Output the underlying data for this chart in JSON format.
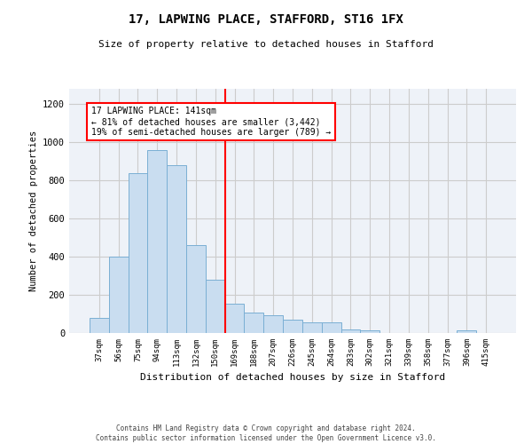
{
  "title1": "17, LAPWING PLACE, STAFFORD, ST16 1FX",
  "title2": "Size of property relative to detached houses in Stafford",
  "xlabel": "Distribution of detached houses by size in Stafford",
  "ylabel": "Number of detached properties",
  "categories": [
    "37sqm",
    "56sqm",
    "75sqm",
    "94sqm",
    "113sqm",
    "132sqm",
    "150sqm",
    "169sqm",
    "188sqm",
    "207sqm",
    "226sqm",
    "245sqm",
    "264sqm",
    "283sqm",
    "302sqm",
    "321sqm",
    "339sqm",
    "358sqm",
    "377sqm",
    "396sqm",
    "415sqm"
  ],
  "values": [
    80,
    400,
    840,
    960,
    880,
    460,
    280,
    155,
    105,
    95,
    70,
    55,
    55,
    20,
    15,
    0,
    0,
    0,
    0,
    15,
    0
  ],
  "bar_color": "#c9ddf0",
  "bar_edge_color": "#7aafd4",
  "property_line_color": "red",
  "annotation_box_edge_color": "red",
  "annotation_box_face_color": "white",
  "property_line_label": "17 LAPWING PLACE: 141sqm",
  "annotation_text1": "← 81% of detached houses are smaller (3,442)",
  "annotation_text2": "19% of semi-detached houses are larger (789) →",
  "ylim": [
    0,
    1280
  ],
  "yticks": [
    0,
    200,
    400,
    600,
    800,
    1000,
    1200
  ],
  "grid_color": "#cccccc",
  "bg_color": "#eef2f8",
  "footer1": "Contains HM Land Registry data © Crown copyright and database right 2024.",
  "footer2": "Contains public sector information licensed under the Open Government Licence v3.0."
}
